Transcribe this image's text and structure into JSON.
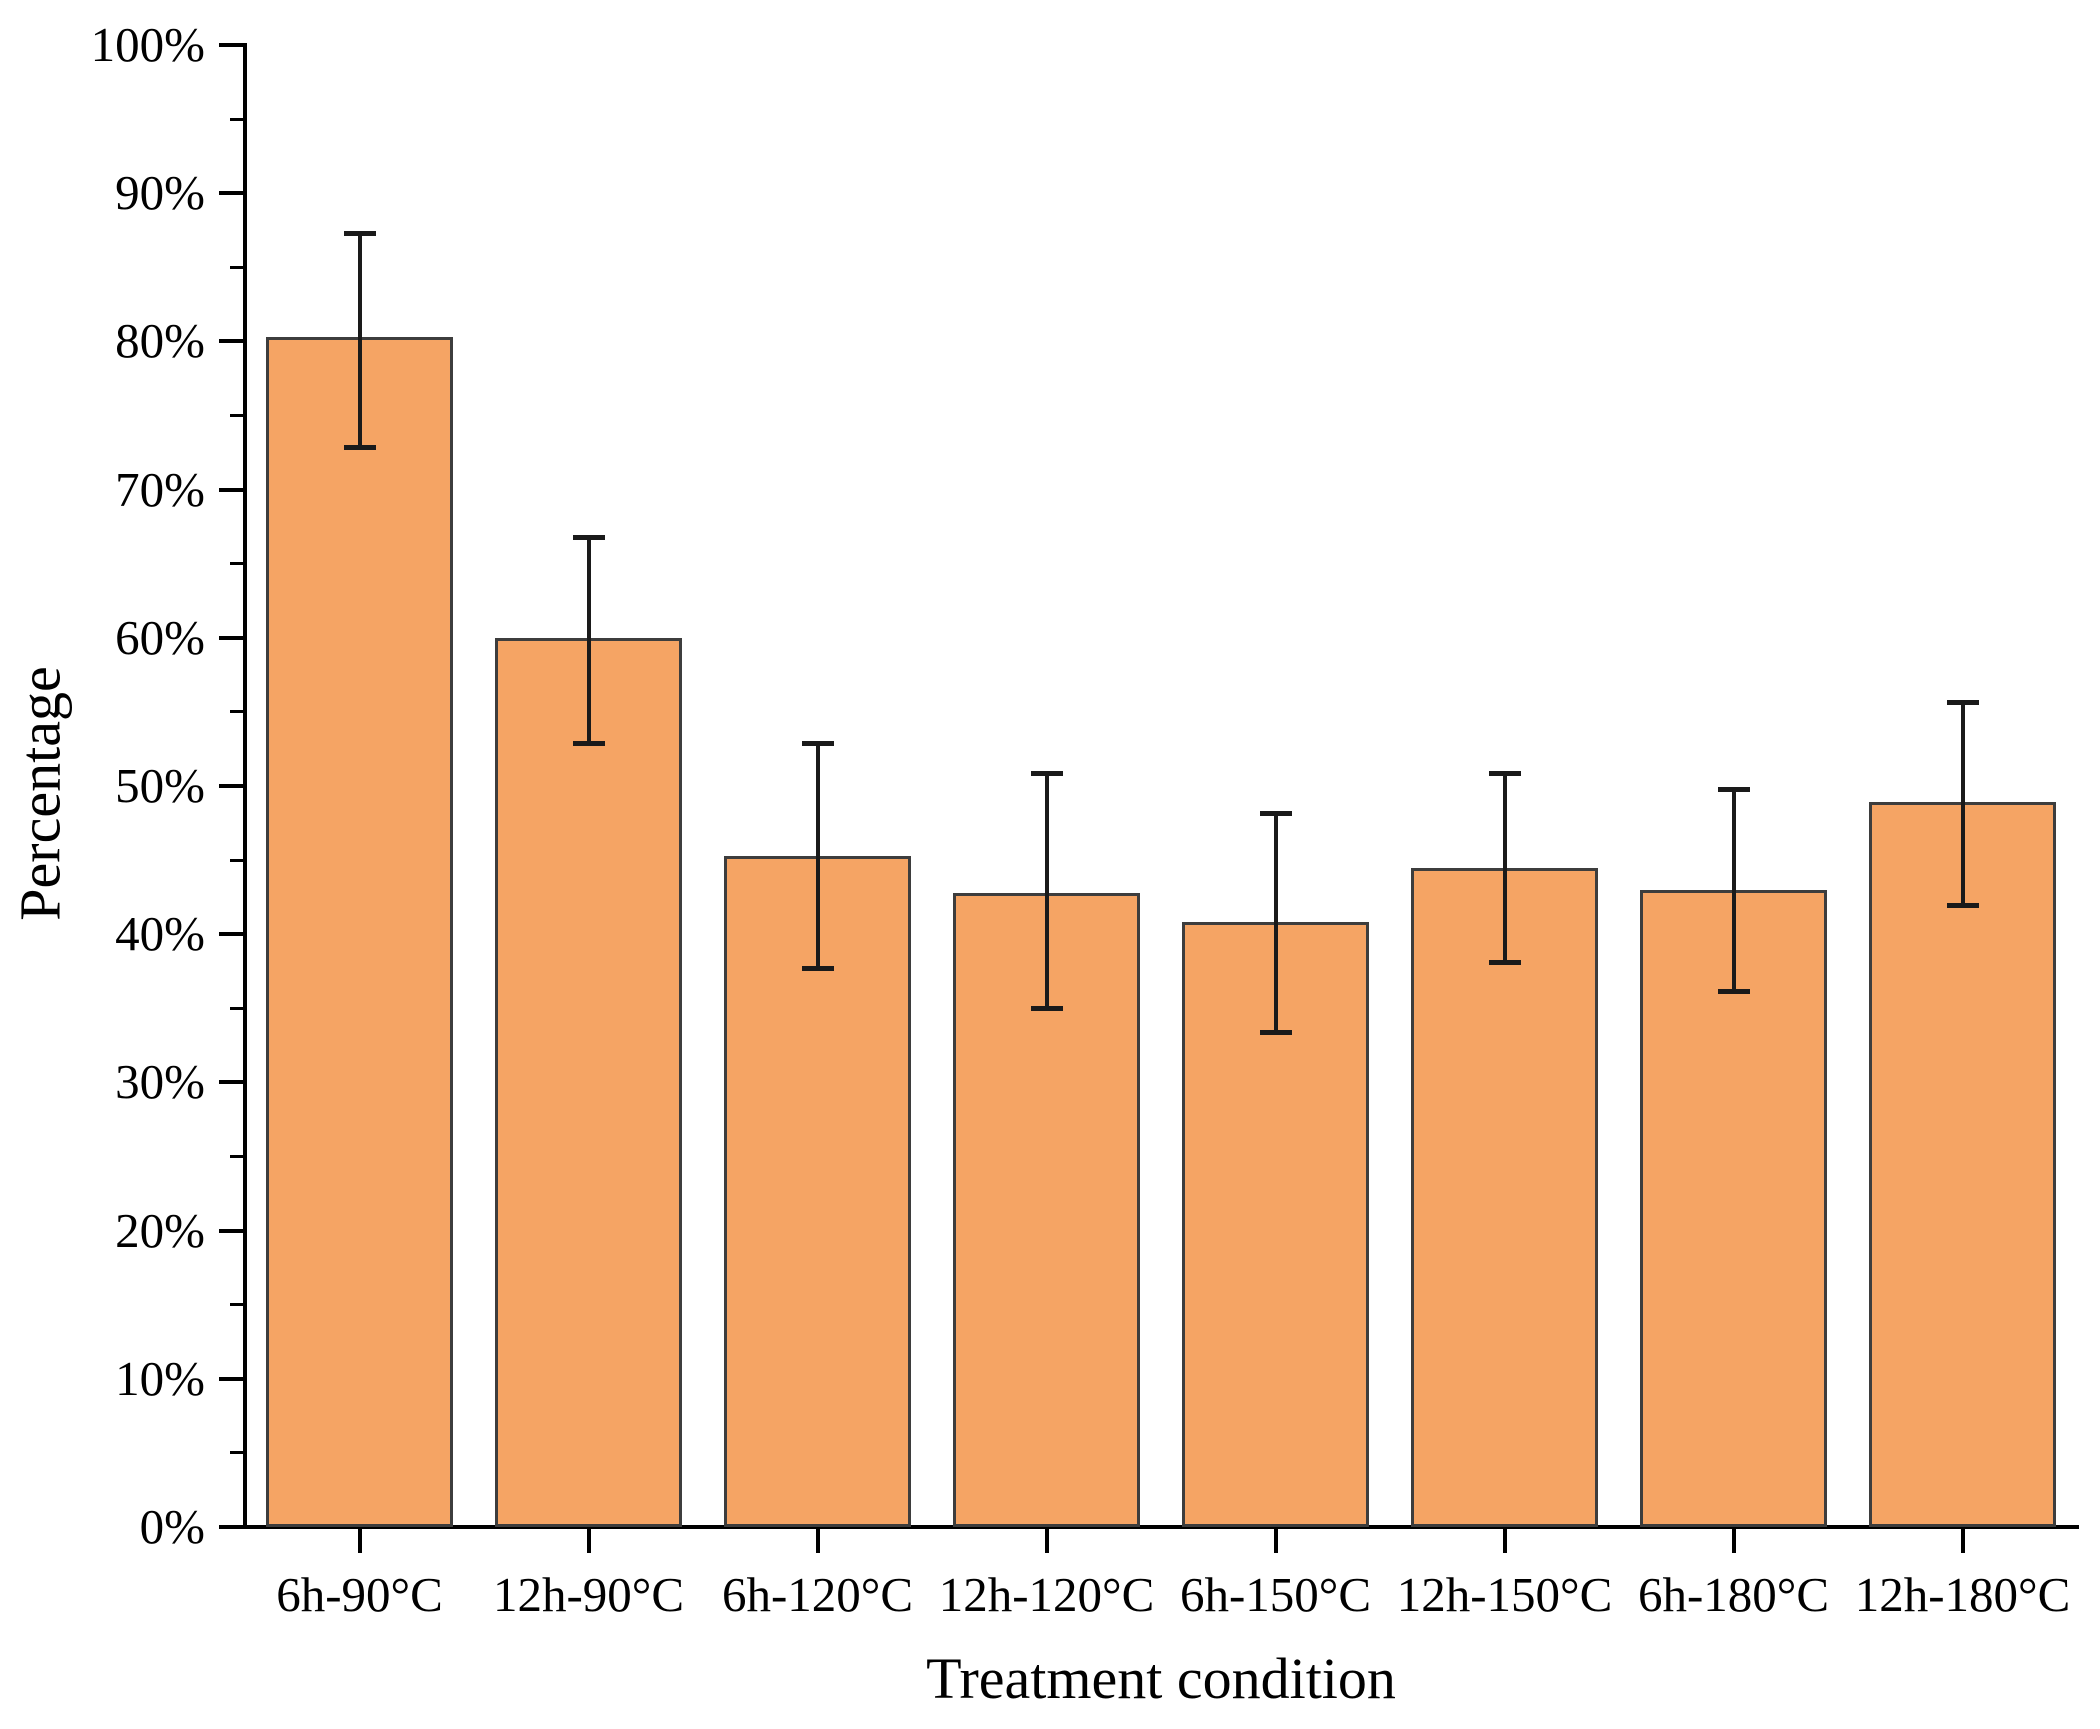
{
  "chart_data": {
    "type": "bar",
    "title": "",
    "xlabel": "Treatment condition",
    "ylabel": "Percentage",
    "categories": [
      "6h-90°C",
      "12h-90°C",
      "6h-120°C",
      "12h-120°C",
      "6h-150°C",
      "12h-150°C",
      "6h-180°C",
      "12h-180°C"
    ],
    "values": [
      80.3,
      60.0,
      45.3,
      42.8,
      40.8,
      44.5,
      43.0,
      48.9
    ],
    "error_up": [
      7.0,
      6.8,
      7.6,
      8.1,
      7.4,
      6.4,
      6.8,
      6.8
    ],
    "error_down": [
      7.4,
      7.1,
      7.6,
      7.8,
      7.4,
      6.4,
      6.8,
      6.9
    ],
    "ylim": [
      0,
      100
    ],
    "y_major_tick_labels": [
      "0%",
      "10%",
      "20%",
      "30%",
      "40%",
      "50%",
      "60%",
      "70%",
      "80%",
      "90%",
      "100%"
    ],
    "y_major_step": 10,
    "y_minor_step": 5,
    "grid": false,
    "legend": null,
    "bar_fill_color": "#F5A464",
    "bar_border_color": "#3D3D3D",
    "error_bar_color": "#1A1A1A",
    "axis_color": "#000000",
    "text_color": "#000000"
  }
}
